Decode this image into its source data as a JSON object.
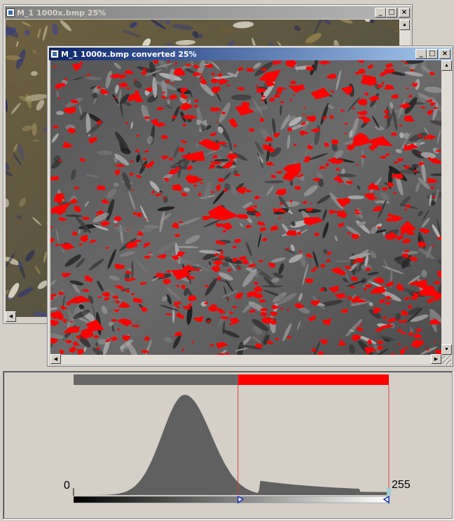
{
  "window_back": {
    "title": "M_1 1000x.bmp 25%",
    "buttons": {
      "minimize": "_",
      "maximize": "□",
      "close": "×"
    }
  },
  "window_front": {
    "title": "M_1 1000x.bmp converted 25%",
    "buttons": {
      "minimize": "_",
      "maximize": "□",
      "close": "×"
    }
  },
  "threshold_panel": {
    "min_label": "0",
    "max_label": "255",
    "lower_threshold": 133,
    "upper_threshold": 255,
    "colors": {
      "below": "#666666",
      "above": "#ff0000",
      "histogram": "#606060"
    }
  },
  "icons": {
    "title_icon": "document-icon",
    "scroll_up": "arrow-up-icon",
    "scroll_down": "arrow-down-icon",
    "scroll_left": "arrow-left-icon",
    "scroll_right": "arrow-right-icon",
    "resize_grip": "resize-grip-icon"
  }
}
